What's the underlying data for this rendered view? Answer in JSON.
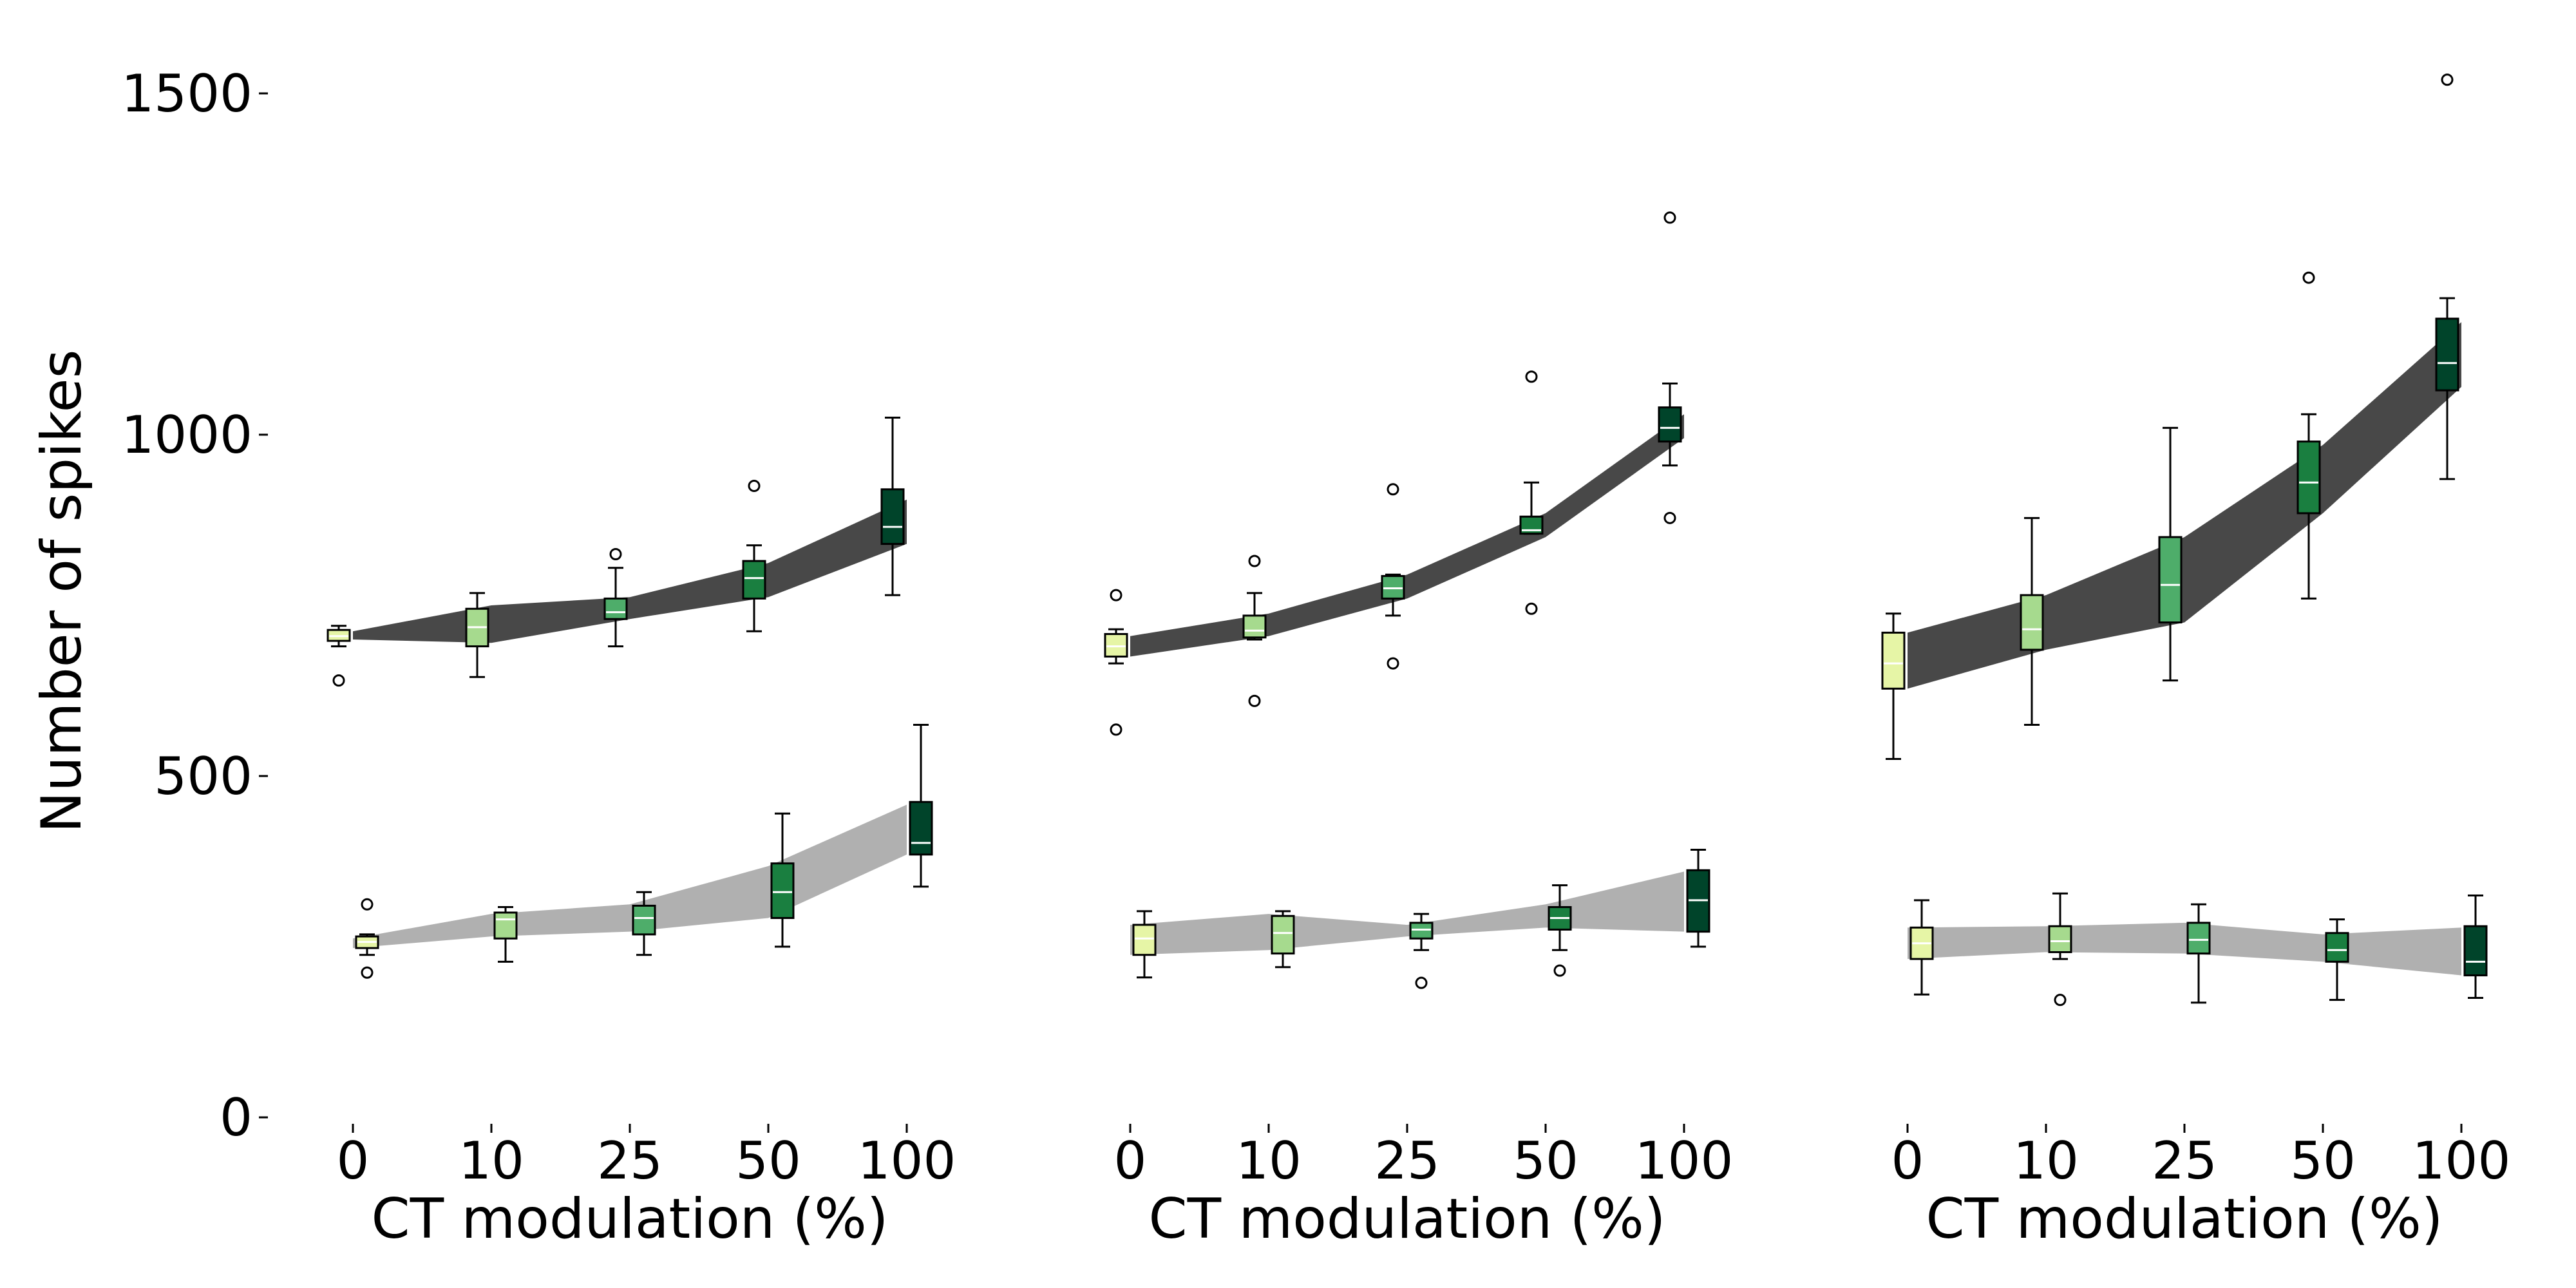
{
  "figure": {
    "ylabel": "Number of spikes",
    "yticks": [
      0,
      500,
      1000,
      1500
    ],
    "ylim": [
      0,
      1520
    ],
    "colors": {
      "upper_band": "#484848",
      "lower_band": "#b0b0b0",
      "box_colors": [
        "#e6f5a6",
        "#a6da8e",
        "#4ead6a",
        "#1a7f40",
        "#00442a"
      ],
      "median_line": "#ffffff"
    }
  },
  "chart_data": [
    {
      "type": "box",
      "xlabel": "CT modulation (%)",
      "categories": [
        "0",
        "10",
        "25",
        "50",
        "100"
      ],
      "upper_band": {
        "top": [
          712,
          750,
          762,
          812,
          905
        ],
        "bottom": [
          700,
          695,
          730,
          762,
          840
        ]
      },
      "lower_band": {
        "top": [
          262,
          298,
          312,
          368,
          458
        ],
        "bottom": [
          248,
          265,
          272,
          292,
          385
        ]
      },
      "series": [
        {
          "group": "upper",
          "boxes": [
            {
              "whislo": 690,
              "q1": 698,
              "med": 705,
              "q3": 714,
              "whishi": 720,
              "fliers": [
                640
              ]
            },
            {
              "whislo": 645,
              "q1": 690,
              "med": 718,
              "q3": 745,
              "whishi": 768,
              "fliers": []
            },
            {
              "whislo": 690,
              "q1": 730,
              "med": 740,
              "q3": 760,
              "whishi": 805,
              "fliers": [
                825
              ]
            },
            {
              "whislo": 712,
              "q1": 760,
              "med": 790,
              "q3": 815,
              "whishi": 838,
              "fliers": [
                925
              ]
            },
            {
              "whislo": 765,
              "q1": 840,
              "med": 865,
              "q3": 920,
              "whishi": 1025,
              "fliers": []
            }
          ]
        },
        {
          "group": "lower",
          "boxes": [
            {
              "whislo": 238,
              "q1": 248,
              "med": 257,
              "q3": 265,
              "whishi": 268,
              "fliers": [
                312,
                212
              ]
            },
            {
              "whislo": 228,
              "q1": 262,
              "med": 290,
              "q3": 300,
              "whishi": 308,
              "fliers": []
            },
            {
              "whislo": 238,
              "q1": 268,
              "med": 292,
              "q3": 310,
              "whishi": 330,
              "fliers": []
            },
            {
              "whislo": 250,
              "q1": 292,
              "med": 330,
              "q3": 372,
              "whishi": 445,
              "fliers": []
            },
            {
              "whislo": 338,
              "q1": 385,
              "med": 402,
              "q3": 462,
              "whishi": 575,
              "fliers": []
            }
          ]
        }
      ]
    },
    {
      "type": "box",
      "xlabel": "CT modulation (%)",
      "categories": [
        "0",
        "10",
        "25",
        "50",
        "100"
      ],
      "upper_band": {
        "top": [
          705,
          738,
          795,
          885,
          1030
        ],
        "bottom": [
          675,
          705,
          760,
          850,
          995
        ]
      },
      "lower_band": {
        "top": [
          282,
          298,
          282,
          312,
          360
        ],
        "bottom": [
          238,
          245,
          265,
          278,
          272
        ]
      },
      "series": [
        {
          "group": "upper",
          "boxes": [
            {
              "whislo": 665,
              "q1": 675,
              "med": 690,
              "q3": 708,
              "whishi": 715,
              "fliers": [
                765,
                568
              ]
            },
            {
              "whislo": 700,
              "q1": 703,
              "med": 713,
              "q3": 735,
              "whishi": 768,
              "fliers": [
                815,
                610
              ]
            },
            {
              "whislo": 735,
              "q1": 760,
              "med": 775,
              "q3": 793,
              "whishi": 795,
              "fliers": [
                920,
                665
              ]
            },
            {
              "whislo": 855,
              "q1": 855,
              "med": 860,
              "q3": 880,
              "whishi": 930,
              "fliers": [
                1085,
                745
              ]
            },
            {
              "whislo": 955,
              "q1": 990,
              "med": 1010,
              "q3": 1040,
              "whishi": 1075,
              "fliers": [
                1318,
                878
              ]
            }
          ]
        },
        {
          "group": "lower",
          "boxes": [
            {
              "whislo": 205,
              "q1": 238,
              "med": 262,
              "q3": 282,
              "whishi": 302,
              "fliers": []
            },
            {
              "whislo": 220,
              "q1": 240,
              "med": 270,
              "q3": 295,
              "whishi": 302,
              "fliers": []
            },
            {
              "whislo": 245,
              "q1": 262,
              "med": 275,
              "q3": 285,
              "whishi": 298,
              "fliers": [
                197
              ]
            },
            {
              "whislo": 245,
              "q1": 275,
              "med": 292,
              "q3": 308,
              "whishi": 340,
              "fliers": [
                215
              ]
            },
            {
              "whislo": 250,
              "q1": 272,
              "med": 318,
              "q3": 362,
              "whishi": 392,
              "fliers": []
            }
          ]
        }
      ]
    },
    {
      "type": "box",
      "xlabel": "CT modulation (%)",
      "categories": [
        "0",
        "10",
        "25",
        "50",
        "100"
      ],
      "upper_band": {
        "top": [
          710,
          765,
          850,
          985,
          1165
        ],
        "bottom": [
          628,
          685,
          725,
          885,
          1070
        ]
      },
      "lower_band": {
        "top": [
          278,
          280,
          285,
          268,
          278
        ],
        "bottom": [
          232,
          242,
          240,
          228,
          208
        ]
      },
      "series": [
        {
          "group": "upper",
          "boxes": [
            {
              "whislo": 525,
              "q1": 628,
              "med": 665,
              "q3": 710,
              "whishi": 738,
              "fliers": []
            },
            {
              "whislo": 575,
              "q1": 685,
              "med": 715,
              "q3": 765,
              "whishi": 878,
              "fliers": []
            },
            {
              "whislo": 640,
              "q1": 725,
              "med": 780,
              "q3": 850,
              "whishi": 1010,
              "fliers": []
            },
            {
              "whislo": 760,
              "q1": 885,
              "med": 930,
              "q3": 990,
              "whishi": 1030,
              "fliers": [
                1230
              ]
            },
            {
              "whislo": 935,
              "q1": 1065,
              "med": 1105,
              "q3": 1170,
              "whishi": 1200,
              "fliers": [
                1520
              ]
            }
          ]
        },
        {
          "group": "lower",
          "boxes": [
            {
              "whislo": 180,
              "q1": 232,
              "med": 255,
              "q3": 278,
              "whishi": 318,
              "fliers": []
            },
            {
              "whislo": 232,
              "q1": 242,
              "med": 258,
              "q3": 280,
              "whishi": 328,
              "fliers": [
                172
              ]
            },
            {
              "whislo": 168,
              "q1": 240,
              "med": 260,
              "q3": 285,
              "whishi": 312,
              "fliers": []
            },
            {
              "whislo": 172,
              "q1": 228,
              "med": 245,
              "q3": 270,
              "whishi": 290,
              "fliers": []
            },
            {
              "whislo": 175,
              "q1": 208,
              "med": 228,
              "q3": 280,
              "whishi": 325,
              "fliers": []
            }
          ]
        }
      ]
    }
  ]
}
